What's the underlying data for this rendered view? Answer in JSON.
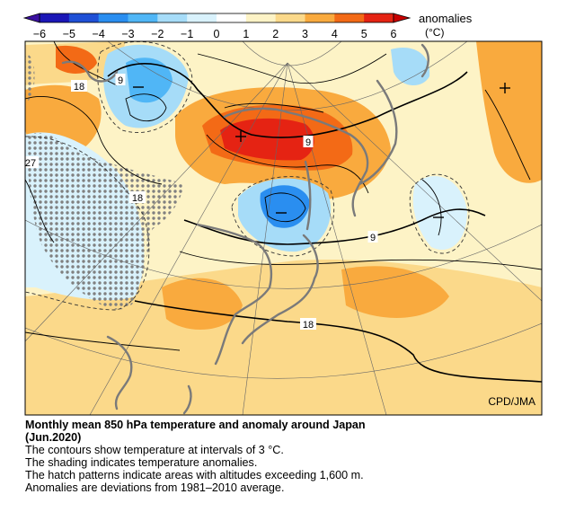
{
  "legend": {
    "label": "anomalies",
    "unit": "(°C)",
    "ticks": [
      "−6",
      "−5",
      "−4",
      "−3",
      "−2",
      "−1",
      "0",
      "1",
      "2",
      "3",
      "4",
      "5",
      "6"
    ],
    "colors": [
      "#1b17b7",
      "#1f50d6",
      "#2a8ef0",
      "#50b6f6",
      "#a6dcf8",
      "#d9f2fc",
      "#ffffff",
      "#fdf3c6",
      "#fbd98a",
      "#f9aa3e",
      "#f36a16",
      "#e52313"
    ]
  },
  "map": {
    "credit": "CPD/JMA",
    "contour_labels": [
      "18",
      "9",
      "27",
      "18",
      "9",
      "9",
      "18"
    ],
    "contour_interval_c": 3,
    "hatch_altitude_m": 1600
  },
  "caption": {
    "title": "Monthly mean 850 hPa temperature and anomaly around Japan",
    "period": "(Jun.2020)",
    "lines": [
      "The contours show temperature at intervals of 3 °C.",
      "The shading indicates temperature anomalies.",
      "The hatch patterns indicate areas with altitudes exceeding 1,600 m.",
      "Anomalies are deviations from 1981–2010 average."
    ]
  }
}
